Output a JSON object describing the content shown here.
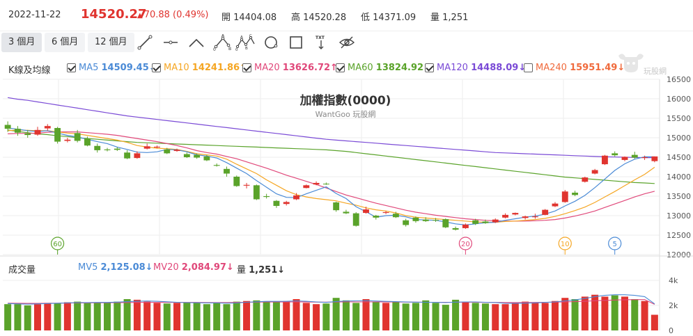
{
  "header": {
    "date": "2022-11-22",
    "price": "14520.27",
    "change": "70.88 (0.49%)",
    "open_label": "開",
    "open": "14404.08",
    "high_label": "高",
    "high": "14520.28",
    "low_label": "低",
    "low": "14371.09",
    "vol_label": "量",
    "vol": "1,251"
  },
  "toolbar": {
    "ranges": [
      "3 個月",
      "6 個月",
      "12 個月"
    ],
    "active_range": 0,
    "tools": [
      "trendline-tool",
      "horizontal-line-tool",
      "angle-tool",
      "abcd-pattern-tool",
      "wave-pattern-tool",
      "circle-tool",
      "rectangle-tool",
      "text-tool",
      "hide-drawings-tool"
    ],
    "text_tool_label": "TXT",
    "pattern_points_1": [
      "A",
      "B",
      "0"
    ],
    "pattern_points_2": [
      "A",
      "B",
      "C",
      "0"
    ]
  },
  "logo": {
    "text": "玩股網"
  },
  "legend": {
    "label": "K線及均線",
    "items": [
      {
        "name": "MA5",
        "value": "14509.45",
        "arrow": "↓",
        "checked": true,
        "color": "#4a8ad6"
      },
      {
        "name": "MA10",
        "value": "14241.86",
        "arrow": "↑",
        "checked": true,
        "color": "#f5a623"
      },
      {
        "name": "MA20",
        "value": "13626.72",
        "arrow": "↑",
        "checked": true,
        "color": "#e0487a"
      },
      {
        "name": "MA60",
        "value": "13824.92",
        "arrow": "↓",
        "checked": true,
        "color": "#5aa32a"
      },
      {
        "name": "MA120",
        "value": "14488.09",
        "arrow": "↓",
        "checked": true,
        "color": "#7a4ad6"
      },
      {
        "name": "MA240",
        "value": "15951.49",
        "arrow": "↓",
        "checked": false,
        "color": "#f06a3c"
      }
    ]
  },
  "volume_legend": {
    "label": "成交量",
    "items": [
      {
        "name": "MV5",
        "value": "2,125.08",
        "arrow": "↓",
        "color": "#4a8ad6"
      },
      {
        "name": "MV20",
        "value": "2,084.97",
        "arrow": "↓",
        "color": "#e0487a"
      },
      {
        "name": "量",
        "value": "1,251",
        "arrow": "↓",
        "color": "#333333"
      }
    ]
  },
  "colors": {
    "up": "#e0342f",
    "down": "#5aa32a",
    "grid": "#eeeeee"
  },
  "chart_data": {
    "type": "candlestick",
    "title": "加權指數(0000)",
    "subtitle": "WantGoo 玩股網",
    "y_ticks": [
      12000,
      12500,
      13000,
      13500,
      14000,
      14500,
      15000,
      15500,
      16000,
      16500
    ],
    "ylim": [
      12000,
      16500
    ],
    "vol_ticks": [
      "4k",
      "2k",
      "0"
    ],
    "vol_ylim": [
      0,
      4000
    ],
    "markers": [
      {
        "label": "60",
        "index": 5,
        "color": "#5aa32a"
      },
      {
        "label": "20",
        "index": 46,
        "color": "#e0487a"
      },
      {
        "label": "10",
        "index": 56,
        "color": "#f5a623"
      },
      {
        "label": "5",
        "index": 61,
        "color": "#4a8ad6"
      }
    ],
    "candles": [
      {
        "o": 15330,
        "h": 15420,
        "c": 15230,
        "l": 15150
      },
      {
        "o": 15230,
        "h": 15300,
        "c": 15130,
        "l": 15050
      },
      {
        "o": 15110,
        "h": 15200,
        "c": 15070,
        "l": 15000
      },
      {
        "o": 15080,
        "h": 15280,
        "c": 15200,
        "l": 15050
      },
      {
        "o": 15240,
        "h": 15350,
        "c": 15300,
        "l": 15180
      },
      {
        "o": 15250,
        "h": 15280,
        "c": 14900,
        "l": 14850
      },
      {
        "o": 14920,
        "h": 15000,
        "c": 14950,
        "l": 14880
      },
      {
        "o": 15120,
        "h": 15200,
        "c": 14920,
        "l": 14880
      },
      {
        "o": 14980,
        "h": 15030,
        "c": 14800,
        "l": 14780
      },
      {
        "o": 14790,
        "h": 14850,
        "c": 14680,
        "l": 14620
      },
      {
        "o": 14700,
        "h": 14740,
        "c": 14680,
        "l": 14650
      },
      {
        "o": 14720,
        "h": 14760,
        "c": 14690,
        "l": 14660
      },
      {
        "o": 14620,
        "h": 14680,
        "c": 14470,
        "l": 14450
      },
      {
        "o": 14480,
        "h": 14650,
        "c": 14600,
        "l": 14460
      },
      {
        "o": 14720,
        "h": 14850,
        "c": 14780,
        "l": 14700
      },
      {
        "o": 14750,
        "h": 14800,
        "c": 14770,
        "l": 14730
      },
      {
        "o": 14700,
        "h": 14740,
        "c": 14600,
        "l": 14580
      },
      {
        "o": 14660,
        "h": 14720,
        "c": 14690,
        "l": 14640
      },
      {
        "o": 14580,
        "h": 14620,
        "c": 14500,
        "l": 14480
      },
      {
        "o": 14560,
        "h": 14600,
        "c": 14490,
        "l": 14460
      },
      {
        "o": 14520,
        "h": 14560,
        "c": 14420,
        "l": 14400
      },
      {
        "o": 14300,
        "h": 14340,
        "c": 14280,
        "l": 14260
      },
      {
        "o": 14200,
        "h": 14260,
        "c": 14080,
        "l": 14000
      },
      {
        "o": 14000,
        "h": 14030,
        "c": 13760,
        "l": 13740
      },
      {
        "o": 13770,
        "h": 13840,
        "c": 13790,
        "l": 13700
      },
      {
        "o": 13780,
        "h": 13800,
        "c": 13420,
        "l": 13400
      },
      {
        "o": 13500,
        "h": 13560,
        "c": 13480,
        "l": 13440
      },
      {
        "o": 13380,
        "h": 13400,
        "c": 13250,
        "l": 13200
      },
      {
        "o": 13300,
        "h": 13380,
        "c": 13350,
        "l": 13260
      },
      {
        "o": 13420,
        "h": 13580,
        "c": 13520,
        "l": 13400
      },
      {
        "o": 13710,
        "h": 13800,
        "c": 13780,
        "l": 13700
      },
      {
        "o": 13800,
        "h": 13880,
        "c": 13840,
        "l": 13780
      },
      {
        "o": 13820,
        "h": 13850,
        "c": 13810,
        "l": 13790
      },
      {
        "o": 13340,
        "h": 13360,
        "c": 13140,
        "l": 13100
      },
      {
        "o": 13100,
        "h": 13150,
        "c": 13060,
        "l": 13040
      },
      {
        "o": 13060,
        "h": 13090,
        "c": 12740,
        "l": 12720
      },
      {
        "o": 13070,
        "h": 13230,
        "c": 13160,
        "l": 13050
      },
      {
        "o": 13000,
        "h": 13020,
        "c": 12950,
        "l": 12900
      },
      {
        "o": 13070,
        "h": 13120,
        "c": 13090,
        "l": 13040
      },
      {
        "o": 13050,
        "h": 13100,
        "c": 12960,
        "l": 12940
      },
      {
        "o": 12880,
        "h": 12920,
        "c": 12760,
        "l": 12720
      },
      {
        "o": 12950,
        "h": 12980,
        "c": 12860,
        "l": 12820
      },
      {
        "o": 12900,
        "h": 12960,
        "c": 12860,
        "l": 12840
      },
      {
        "o": 12890,
        "h": 12940,
        "c": 12880,
        "l": 12840
      },
      {
        "o": 12910,
        "h": 12930,
        "c": 12700,
        "l": 12680
      },
      {
        "o": 12680,
        "h": 12720,
        "c": 12640,
        "l": 12620
      },
      {
        "o": 12680,
        "h": 12800,
        "c": 12770,
        "l": 12660
      },
      {
        "o": 12880,
        "h": 12920,
        "c": 12790,
        "l": 12760
      },
      {
        "o": 12850,
        "h": 12900,
        "c": 12810,
        "l": 12790
      },
      {
        "o": 12830,
        "h": 12930,
        "c": 12900,
        "l": 12810
      },
      {
        "o": 12950,
        "h": 13060,
        "c": 13020,
        "l": 12930
      },
      {
        "o": 13030,
        "h": 13080,
        "c": 13070,
        "l": 13010
      },
      {
        "o": 12940,
        "h": 13000,
        "c": 12980,
        "l": 12900
      },
      {
        "o": 12960,
        "h": 13050,
        "c": 12980,
        "l": 12920
      },
      {
        "o": 13020,
        "h": 13170,
        "c": 13150,
        "l": 13010
      },
      {
        "o": 13240,
        "h": 13350,
        "c": 13310,
        "l": 13220
      },
      {
        "o": 13350,
        "h": 13660,
        "c": 13620,
        "l": 13330
      },
      {
        "o": 13590,
        "h": 13640,
        "c": 13530,
        "l": 13500
      },
      {
        "o": 13870,
        "h": 14000,
        "c": 13980,
        "l": 13850
      },
      {
        "o": 14080,
        "h": 14200,
        "c": 14170,
        "l": 14060
      },
      {
        "o": 14320,
        "h": 14560,
        "c": 14540,
        "l": 14300
      },
      {
        "o": 14600,
        "h": 14650,
        "c": 14550,
        "l": 14520
      },
      {
        "o": 14430,
        "h": 14520,
        "c": 14510,
        "l": 14400
      },
      {
        "o": 14560,
        "h": 14640,
        "c": 14490,
        "l": 14460
      },
      {
        "o": 14480,
        "h": 14540,
        "c": 14500,
        "l": 14430
      },
      {
        "o": 14400,
        "h": 14520,
        "c": 14520,
        "l": 14370
      }
    ],
    "volumes": [
      2100,
      2100,
      2000,
      2100,
      2200,
      2150,
      2250,
      2300,
      2200,
      2250,
      2200,
      2300,
      2500,
      2450,
      2300,
      2200,
      2150,
      2200,
      2250,
      2200,
      2100,
      2200,
      2100,
      2300,
      2350,
      2400,
      2300,
      2250,
      2350,
      2500,
      2200,
      2100,
      2150,
      2600,
      2400,
      2200,
      2500,
      2300,
      2200,
      2300,
      2150,
      2200,
      2400,
      2200,
      2050,
      2450,
      2300,
      2200,
      2150,
      2100,
      2100,
      2150,
      2300,
      2250,
      2200,
      2350,
      2600,
      2500,
      2700,
      2850,
      2700,
      2800,
      2700,
      2500,
      2350,
      1251
    ],
    "ma5": [
      15250,
      15220,
      15180,
      15160,
      15180,
      15120,
      15060,
      15020,
      14960,
      14900,
      14850,
      14760,
      14700,
      14630,
      14620,
      14640,
      14700,
      14690,
      14640,
      14560,
      14530,
      14480,
      14360,
      14220,
      14080,
      13900,
      13730,
      13560,
      13470,
      13460,
      13560,
      13650,
      13740,
      13570,
      13440,
      13230,
      13100,
      12960,
      13000,
      13010,
      12970,
      12900,
      12890,
      12880,
      12840,
      12790,
      12760,
      12790,
      12820,
      12830,
      12880,
      12920,
      12960,
      12990,
      13040,
      13120,
      13250,
      13370,
      13520,
      13720,
      13940,
      14160,
      14330,
      14450,
      14510,
      14509
    ],
    "ma10": [
      15180,
      15200,
      15190,
      15180,
      15180,
      15150,
      15120,
      15100,
      15060,
      15020,
      14980,
      14940,
      14880,
      14800,
      14760,
      14730,
      14720,
      14700,
      14650,
      14590,
      14560,
      14530,
      14450,
      14320,
      14200,
      14080,
      13920,
      13780,
      13640,
      13540,
      13480,
      13440,
      13410,
      13380,
      13320,
      13270,
      13200,
      13150,
      13120,
      13070,
      13000,
      12960,
      12940,
      12920,
      12900,
      12880,
      12860,
      12840,
      12830,
      12830,
      12850,
      12860,
      12880,
      12900,
      12930,
      12980,
      13050,
      13130,
      13220,
      13340,
      13480,
      13620,
      13770,
      13920,
      14060,
      14242
    ],
    "ma20": [
      15100,
      15110,
      15110,
      15120,
      15140,
      15150,
      15150,
      15150,
      15130,
      15110,
      15090,
      15060,
      15020,
      14980,
      14940,
      14900,
      14850,
      14800,
      14740,
      14670,
      14620,
      14580,
      14520,
      14460,
      14380,
      14300,
      14220,
      14130,
      14040,
      13960,
      13880,
      13800,
      13710,
      13620,
      13530,
      13460,
      13390,
      13320,
      13260,
      13200,
      13140,
      13090,
      13050,
      13010,
      12980,
      12950,
      12920,
      12900,
      12880,
      12870,
      12860,
      12860,
      12860,
      12870,
      12880,
      12900,
      12940,
      12990,
      13050,
      13120,
      13210,
      13300,
      13390,
      13480,
      13560,
      13627
    ],
    "ma60": [
      15200,
      15160,
      15130,
      15100,
      15080,
      15050,
      15030,
      15000,
      14980,
      14960,
      14940,
      14920,
      14900,
      14880,
      14870,
      14860,
      14850,
      14840,
      14830,
      14820,
      14810,
      14800,
      14790,
      14780,
      14770,
      14760,
      14750,
      14740,
      14730,
      14720,
      14710,
      14700,
      14690,
      14670,
      14650,
      14620,
      14590,
      14560,
      14530,
      14500,
      14470,
      14440,
      14410,
      14380,
      14350,
      14320,
      14290,
      14260,
      14230,
      14200,
      14170,
      14140,
      14110,
      14080,
      14050,
      14020,
      13990,
      13970,
      13950,
      13930,
      13910,
      13890,
      13870,
      13850,
      13840,
      13825
    ],
    "ma120": [
      16030,
      15990,
      15960,
      15920,
      15880,
      15840,
      15800,
      15760,
      15720,
      15680,
      15640,
      15600,
      15560,
      15530,
      15500,
      15470,
      15440,
      15410,
      15380,
      15350,
      15320,
      15290,
      15260,
      15230,
      15200,
      15170,
      15140,
      15110,
      15080,
      15050,
      15020,
      14990,
      14960,
      14940,
      14920,
      14900,
      14880,
      14860,
      14840,
      14820,
      14800,
      14780,
      14760,
      14740,
      14720,
      14700,
      14680,
      14660,
      14640,
      14620,
      14610,
      14600,
      14590,
      14580,
      14570,
      14560,
      14550,
      14540,
      14530,
      14520,
      14510,
      14505,
      14500,
      14495,
      14490,
      14488
    ],
    "mv5": [
      2150,
      2120,
      2100,
      2120,
      2150,
      2170,
      2200,
      2220,
      2230,
      2240,
      2240,
      2260,
      2300,
      2330,
      2350,
      2330,
      2290,
      2250,
      2220,
      2210,
      2200,
      2200,
      2180,
      2190,
      2250,
      2290,
      2320,
      2320,
      2330,
      2360,
      2330,
      2280,
      2240,
      2310,
      2350,
      2360,
      2380,
      2350,
      2320,
      2300,
      2270,
      2260,
      2250,
      2240,
      2230,
      2260,
      2280,
      2280,
      2250,
      2230,
      2170,
      2160,
      2180,
      2200,
      2240,
      2280,
      2360,
      2440,
      2550,
      2700,
      2800,
      2850,
      2850,
      2800,
      2700,
      2125
    ],
    "mv20": [
      2180,
      2170,
      2160,
      2160,
      2170,
      2180,
      2190,
      2200,
      2200,
      2210,
      2210,
      2220,
      2230,
      2240,
      2240,
      2240,
      2240,
      2240,
      2240,
      2240,
      2230,
      2230,
      2230,
      2240,
      2250,
      2260,
      2270,
      2270,
      2270,
      2280,
      2270,
      2260,
      2260,
      2270,
      2280,
      2280,
      2280,
      2280,
      2270,
      2270,
      2260,
      2260,
      2250,
      2250,
      2250,
      2250,
      2250,
      2250,
      2240,
      2240,
      2230,
      2230,
      2230,
      2240,
      2250,
      2260,
      2280,
      2300,
      2330,
      2370,
      2400,
      2430,
      2450,
      2460,
      2460,
      2085
    ]
  }
}
